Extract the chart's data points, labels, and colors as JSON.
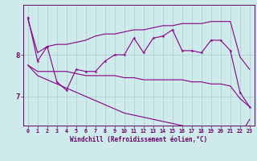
{
  "x_hours": [
    0,
    1,
    2,
    3,
    4,
    5,
    6,
    7,
    8,
    9,
    10,
    11,
    12,
    13,
    14,
    15,
    16,
    17,
    18,
    19,
    20,
    21,
    22,
    23
  ],
  "line_spiky": [
    8.9,
    7.85,
    8.2,
    7.35,
    7.15,
    7.65,
    7.6,
    7.6,
    7.85,
    8.0,
    8.0,
    8.4,
    8.05,
    8.4,
    8.45,
    8.6,
    8.1,
    8.1,
    8.05,
    8.35,
    8.35,
    8.1,
    7.1,
    6.75
  ],
  "line_upper": [
    8.85,
    8.05,
    8.2,
    8.25,
    8.25,
    8.3,
    8.35,
    8.45,
    8.5,
    8.5,
    8.55,
    8.6,
    8.6,
    8.65,
    8.7,
    8.7,
    8.75,
    8.75,
    8.75,
    8.8,
    8.8,
    8.8,
    7.95,
    7.65
  ],
  "line_lower": [
    7.75,
    7.6,
    7.6,
    7.6,
    7.6,
    7.55,
    7.5,
    7.5,
    7.5,
    7.5,
    7.45,
    7.45,
    7.4,
    7.4,
    7.4,
    7.4,
    7.4,
    7.35,
    7.35,
    7.3,
    7.3,
    7.25,
    6.95,
    6.75
  ],
  "line_bottom": [
    7.75,
    7.5,
    7.4,
    7.3,
    7.2,
    7.1,
    7.0,
    6.9,
    6.8,
    6.7,
    6.6,
    6.55,
    6.5,
    6.45,
    6.4,
    6.35,
    6.3,
    6.25,
    6.2,
    6.15,
    6.12,
    6.1,
    6.05,
    6.45
  ],
  "bg_color": "#ceeaea",
  "line_color": "#880088",
  "grid_color": "#aacccc",
  "axis_color": "#660066",
  "ylabel_ticks": [
    7,
    8
  ],
  "xlabel": "Windchill (Refroidissement éolien,°C)",
  "xlim": [
    -0.5,
    23.5
  ],
  "ylim": [
    6.3,
    9.2
  ]
}
